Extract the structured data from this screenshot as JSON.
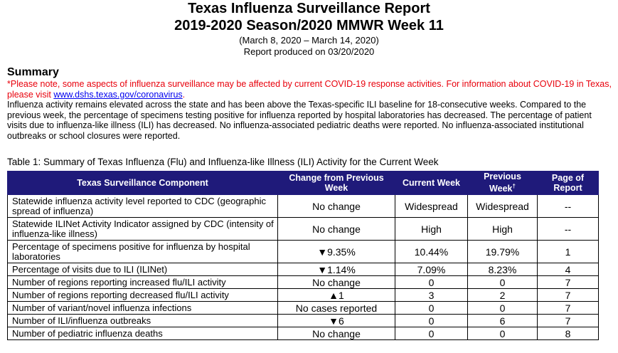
{
  "report": {
    "title": "Texas Influenza Surveillance Report",
    "subtitle": "2019-2020 Season/2020 MMWR Week 11",
    "dates": "(March 8, 2020 – March 14, 2020)",
    "produced": "Report produced on 03/20/2020"
  },
  "summary": {
    "heading": "Summary",
    "covid_note_prefix": "*Please note, some aspects of influenza surveillance may be affected by current COVID-19 response activities. For information about COVID-19 in Texas, please visit ",
    "covid_link": "www.dshs.texas.gov/coronavirus",
    "covid_note_suffix": ".",
    "body": "Influenza activity remains elevated across the state and has been above the Texas-specific ILI baseline for 18-consecutive weeks. Compared to the previous week, the percentage of specimens testing positive for influenza reported by hospital laboratories has decreased. The percentage of patient visits due to influenza-like illness (ILI) has decreased. No influenza-associated pediatric deaths were reported. No influenza-associated institutional outbreaks or school closures were reported."
  },
  "table": {
    "caption": "Table 1: Summary of Texas Influenza (Flu) and Influenza-like Illness (ILI) Activity for the Current Week",
    "headers": {
      "component": "Texas Surveillance Component",
      "change": "Change from Previous Week",
      "current": "Current Week",
      "previous": "Previous Week",
      "previous_mark": "†",
      "page": "Page of Report"
    },
    "rows": [
      {
        "component": "Statewide influenza activity level reported to CDC (geographic spread of influenza)",
        "change": "No change",
        "current": "Widespread",
        "previous": "Widespread",
        "page": "--"
      },
      {
        "component": "Statewide ILINet Activity Indicator assigned by CDC (intensity of influenza-like illness)",
        "change": "No change",
        "current": "High",
        "previous": "High",
        "page": "--"
      },
      {
        "component": "Percentage of specimens positive for influenza by hospital laboratories",
        "change": "▼9.35%",
        "current": "10.44%",
        "previous": "19.79%",
        "page": "1"
      },
      {
        "component": "Percentage of visits due to ILI (ILINet)",
        "change": "▼1.14%",
        "current": "7.09%",
        "previous": "8.23%",
        "page": "4"
      },
      {
        "component": "Number of regions reporting increased flu/ILI activity",
        "change": "No change",
        "current": "0",
        "previous": "0",
        "page": "7"
      },
      {
        "component": "Number of regions reporting decreased flu/ILI activity",
        "change": "▲1",
        "current": "3",
        "previous": "2",
        "page": "7"
      },
      {
        "component": "Number of variant/novel influenza infections",
        "change": "No cases reported",
        "current": "0",
        "previous": "0",
        "page": "7"
      },
      {
        "component": "Number of ILI/influenza outbreaks",
        "change": "▼6",
        "current": "0",
        "previous": "6",
        "page": "7"
      },
      {
        "component": "Number of pediatric influenza deaths",
        "change": "No change",
        "current": "0",
        "previous": "0",
        "page": "8"
      }
    ]
  }
}
